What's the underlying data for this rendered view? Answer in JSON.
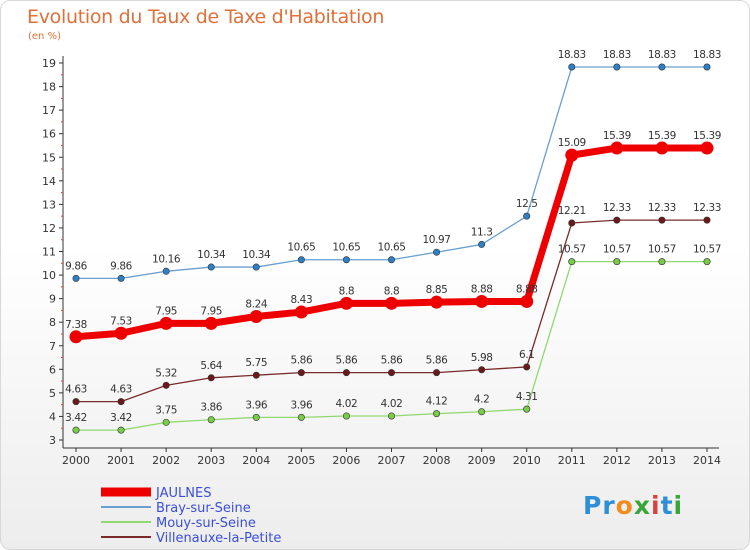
{
  "title": "Evolution du Taux de Taxe d'Habitation",
  "subtitle": "(en %)",
  "logo": {
    "letters": [
      {
        "ch": "P",
        "color": "#2f8fd6"
      },
      {
        "ch": "r",
        "color": "#2f8fd6"
      },
      {
        "ch": "o",
        "color": "#f28c1e"
      },
      {
        "ch": "x",
        "color": "#3aa63a"
      },
      {
        "ch": "i",
        "color": "#d94040"
      },
      {
        "ch": "t",
        "color": "#2f8fd6"
      },
      {
        "ch": "i",
        "color": "#3aa63a"
      }
    ]
  },
  "chart_data": {
    "type": "line",
    "title": "Evolution du Taux de Taxe d'Habitation",
    "ylabel": "(en %)",
    "xlabel": "",
    "x": [
      "2000",
      "2001",
      "2002",
      "2003",
      "2004",
      "2005",
      "2006",
      "2007",
      "2008",
      "2009",
      "2010",
      "2011",
      "2012",
      "2013",
      "2014"
    ],
    "ylim": [
      3,
      19
    ],
    "yticks": [
      3,
      4,
      5,
      6,
      7,
      8,
      9,
      10,
      11,
      12,
      13,
      14,
      15,
      16,
      17,
      18,
      19
    ],
    "grid": false,
    "legend_position": "bottom-left",
    "series": [
      {
        "name": "JAULNES",
        "color": "#ee0000",
        "marker_color": "#ee0000",
        "emphasis": true,
        "values": [
          7.38,
          7.53,
          7.95,
          7.95,
          8.24,
          8.43,
          8.8,
          8.8,
          8.85,
          8.88,
          8.88,
          15.09,
          15.39,
          15.39,
          15.39
        ],
        "labels": [
          "7.38",
          "7.53",
          "7.95",
          "7.95",
          "8.24",
          "8.43",
          "8.8",
          "8.8",
          "8.85",
          "8.88",
          "8.88",
          "15.09",
          "15.39",
          "15.39",
          "15.39"
        ]
      },
      {
        "name": "Bray-sur-Seine",
        "color": "#6a9fd0",
        "marker_color": "#2f7fc4",
        "emphasis": false,
        "values": [
          9.86,
          9.86,
          10.16,
          10.34,
          10.34,
          10.65,
          10.65,
          10.65,
          10.97,
          11.3,
          12.5,
          18.83,
          18.83,
          18.83,
          18.83
        ],
        "labels": [
          "9.86",
          "9.86",
          "10.16",
          "10.34",
          "10.34",
          "10.65",
          "10.65",
          "10.65",
          "10.97",
          "11.3",
          "12.5",
          "18.83",
          "18.83",
          "18.83",
          "18.83"
        ]
      },
      {
        "name": "Mouy-sur-Seine",
        "color": "#90d870",
        "marker_color": "#7acb48",
        "emphasis": false,
        "values": [
          3.42,
          3.42,
          3.75,
          3.86,
          3.96,
          3.96,
          4.02,
          4.02,
          4.12,
          4.2,
          4.31,
          10.57,
          10.57,
          10.57,
          10.57
        ],
        "labels": [
          "3.42",
          "3.42",
          "3.75",
          "3.86",
          "3.96",
          "3.96",
          "4.02",
          "4.02",
          "4.12",
          "4.2",
          "4.31",
          "10.57",
          "10.57",
          "10.57",
          "10.57"
        ]
      },
      {
        "name": "Villenauxe-la-Petite",
        "color": "#7a2a2a",
        "marker_color": "#6a1a1a",
        "emphasis": false,
        "values": [
          4.63,
          4.63,
          5.32,
          5.64,
          5.75,
          5.86,
          5.86,
          5.86,
          5.86,
          5.98,
          6.1,
          12.21,
          12.33,
          12.33,
          12.33
        ],
        "labels": [
          "4.63",
          "4.63",
          "5.32",
          "5.64",
          "5.75",
          "5.86",
          "5.86",
          "5.86",
          "5.86",
          "5.98",
          "6.1",
          "12.21",
          "12.33",
          "12.33",
          "12.33"
        ]
      }
    ]
  }
}
